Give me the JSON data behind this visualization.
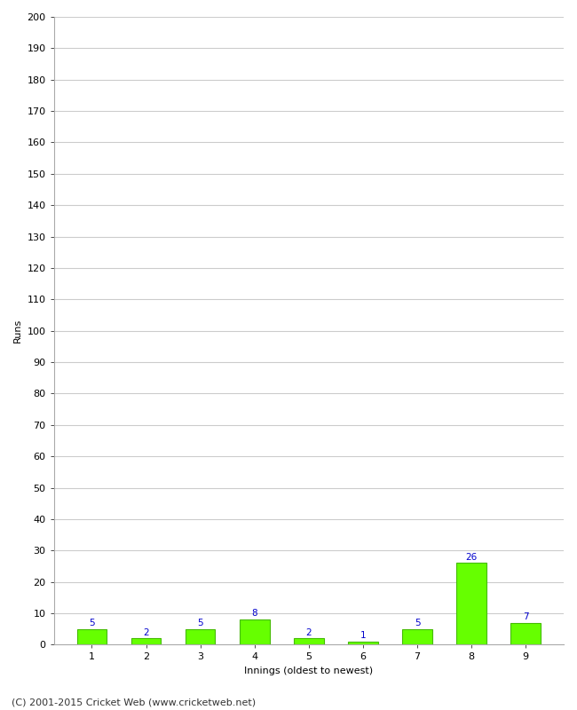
{
  "innings": [
    1,
    2,
    3,
    4,
    5,
    6,
    7,
    8,
    9
  ],
  "runs": [
    5,
    2,
    5,
    8,
    2,
    1,
    5,
    26,
    7
  ],
  "bar_color": "#66ff00",
  "bar_edge_color": "#44bb00",
  "label_color": "#0000cc",
  "xlabel": "Innings (oldest to newest)",
  "ylabel": "Runs",
  "ylim": [
    0,
    200
  ],
  "yticks": [
    0,
    10,
    20,
    30,
    40,
    50,
    60,
    70,
    80,
    90,
    100,
    110,
    120,
    130,
    140,
    150,
    160,
    170,
    180,
    190,
    200
  ],
  "grid_color": "#cccccc",
  "background_color": "#ffffff",
  "footer": "(C) 2001-2015 Cricket Web (www.cricketweb.net)",
  "label_fontsize": 7.5,
  "axis_label_fontsize": 8,
  "tick_fontsize": 8,
  "footer_fontsize": 8
}
